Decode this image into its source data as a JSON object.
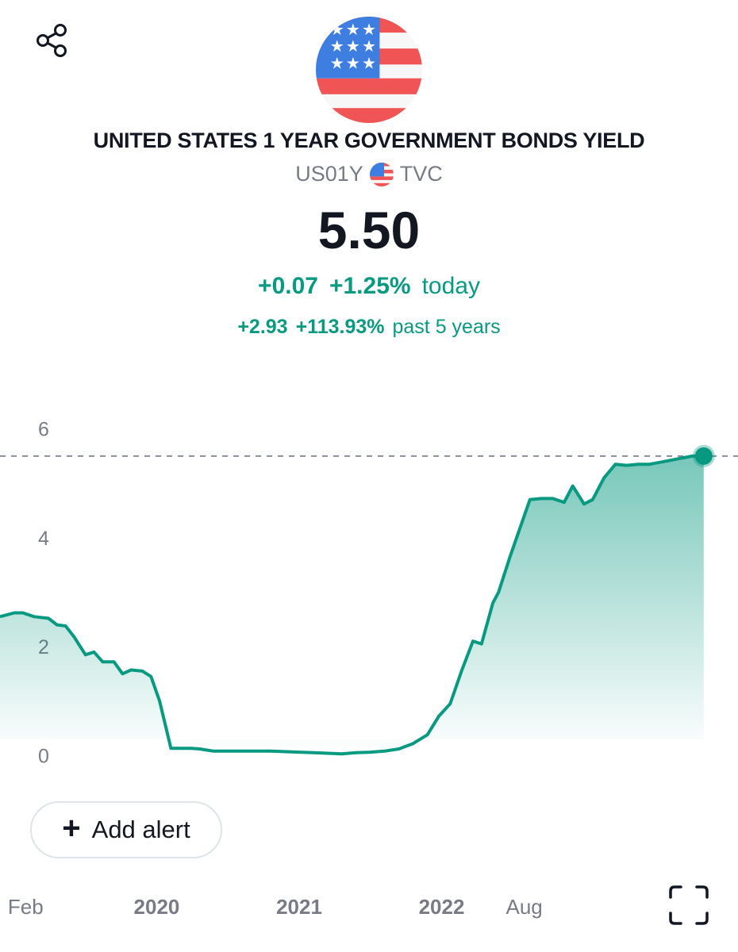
{
  "header": {
    "share_icon": "share-icon",
    "flag_icon": "us-flag-icon",
    "title": "UNITED STATES 1 YEAR GOVERNMENT BONDS YIELD",
    "symbol": "US01Y",
    "exchange": "TVC"
  },
  "quote": {
    "price": "5.50",
    "today_change": "+0.07",
    "today_change_pct": "+1.25%",
    "today_label": "today",
    "period_change": "+2.93",
    "period_change_pct": "+113.93%",
    "period_label": "past 5 years"
  },
  "colors": {
    "positive": "#089981",
    "line": "#089981",
    "text": "#131722",
    "muted": "#787b86"
  },
  "actions": {
    "add_alert_label": "Add alert",
    "add_alert_icon": "plus-icon",
    "fullscreen_icon": "fullscreen-icon"
  },
  "chart_data": {
    "type": "area",
    "title": "",
    "xlabel": "",
    "ylabel": "",
    "ylim": [
      -0.55,
      6.3
    ],
    "xlim": [
      2018.9,
      2023.88
    ],
    "y_ticks": [
      0,
      2,
      4,
      6
    ],
    "x_ticks": [
      {
        "label": "Feb",
        "x": 2019.08,
        "bold": false
      },
      {
        "label": "2020",
        "x": 2020.0,
        "bold": true
      },
      {
        "label": "2021",
        "x": 2021.0,
        "bold": true
      },
      {
        "label": "2022",
        "x": 2022.0,
        "bold": true
      },
      {
        "label": "Aug",
        "x": 2022.58,
        "bold": false
      }
    ],
    "reference_line": 5.5,
    "grid": false,
    "series": [
      {
        "x": [
          2018.9,
          2019.0,
          2019.06,
          2019.14,
          2019.24,
          2019.3,
          2019.36,
          2019.42,
          2019.5,
          2019.56,
          2019.62,
          2019.7,
          2019.76,
          2019.82,
          2019.9,
          2019.96,
          2020.02,
          2020.1,
          2020.16,
          2020.24,
          2020.3,
          2020.4,
          2020.6,
          2020.8,
          2021.0,
          2021.1,
          2021.2,
          2021.3,
          2021.4,
          2021.5,
          2021.6,
          2021.7,
          2021.8,
          2021.9,
          2021.98,
          2022.06,
          2022.14,
          2022.22,
          2022.28,
          2022.36,
          2022.4,
          2022.48,
          2022.56,
          2022.62,
          2022.7,
          2022.78,
          2022.86,
          2022.92,
          2023.0,
          2023.06,
          2023.14,
          2023.22,
          2023.3,
          2023.38,
          2023.46,
          2023.56,
          2023.66,
          2023.76,
          2023.84
        ],
        "values": [
          2.55,
          2.62,
          2.62,
          2.55,
          2.52,
          2.4,
          2.38,
          2.18,
          1.85,
          1.9,
          1.72,
          1.72,
          1.5,
          1.57,
          1.55,
          1.45,
          1.0,
          0.13,
          0.13,
          0.13,
          0.12,
          0.08,
          0.08,
          0.08,
          0.06,
          0.05,
          0.04,
          0.03,
          0.05,
          0.06,
          0.08,
          0.12,
          0.22,
          0.38,
          0.72,
          0.95,
          1.55,
          2.1,
          2.05,
          2.8,
          3.0,
          3.65,
          4.25,
          4.7,
          4.72,
          4.72,
          4.65,
          4.95,
          4.62,
          4.7,
          5.1,
          5.35,
          5.33,
          5.35,
          5.35,
          5.4,
          5.45,
          5.5,
          5.5
        ]
      }
    ]
  }
}
